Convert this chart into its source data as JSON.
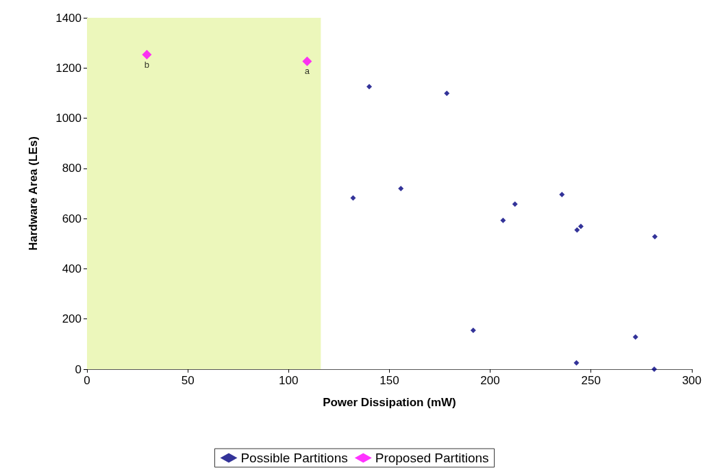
{
  "chart_data": {
    "type": "scatter",
    "xlabel": "Power Dissipation (mW)",
    "ylabel": "Hardware Area (LEs)",
    "xlim": [
      0,
      300
    ],
    "xticks": [
      0,
      50,
      100,
      150,
      200,
      250,
      300
    ],
    "ylim": [
      0,
      1400
    ],
    "yticks": [
      0,
      200,
      400,
      600,
      800,
      1000,
      1200,
      1400
    ],
    "grid": false,
    "legend": "bottom",
    "marker": "diamond",
    "series": [
      {
        "name": "Possible Partitions",
        "color": "#000080",
        "x": [
          140,
          178.5,
          132,
          155.7,
          212.3,
          206.4,
          235.6,
          243.1,
          245,
          281.7,
          191.6,
          272.1,
          242.8,
          281.4
        ],
        "values": [
          1126,
          1099,
          682,
          720,
          658,
          593,
          696,
          555,
          569,
          528,
          155,
          128,
          25,
          0
        ]
      },
      {
        "name": "Proposed Partitions",
        "color": "#ff00ff",
        "x": [
          109.2,
          29.7
        ],
        "values": [
          1227,
          1253
        ]
      }
    ],
    "bands": [
      {
        "axis": "x",
        "from": 0,
        "to": 116,
        "color": "#ecf7bb"
      }
    ],
    "annotations": [
      {
        "text": "a",
        "x": 109.2,
        "y": 1227
      },
      {
        "text": "b",
        "x": 29.7,
        "y": 1253
      }
    ]
  }
}
